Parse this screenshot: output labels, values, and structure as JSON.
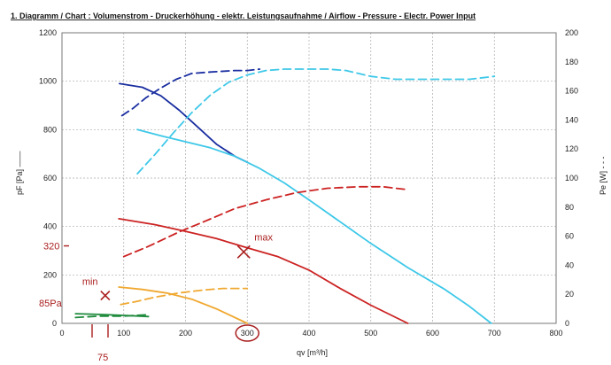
{
  "chart_data": {
    "type": "line",
    "title": "1. Diagramm / Chart :   Volumenstrom - Druckerhöhung - elektr. Leistungsaufnahme / Airflow - Pressure - Electr. Power Input",
    "xlabel": "qv [m³/h]",
    "ylabel": "pF [Pa] ——",
    "y2label": "Pe [W] - - -",
    "xlim": [
      0,
      800
    ],
    "ylim": [
      0,
      1200
    ],
    "y2lim": [
      0,
      200
    ],
    "xticks": [
      0,
      100,
      200,
      300,
      400,
      500,
      600,
      700,
      800
    ],
    "yticks": [
      0,
      200,
      400,
      600,
      800,
      1000,
      1200
    ],
    "y2ticks": [
      0,
      20,
      40,
      60,
      80,
      100,
      120,
      140,
      160,
      180,
      200
    ],
    "grid": true,
    "gridstyle": "dashed",
    "series": [
      {
        "axis": "left",
        "style": "solid",
        "color": "#1a2ea0",
        "x": [
          93,
          130,
          160,
          190,
          220,
          250,
          280,
          300
        ],
        "y": [
          990,
          975,
          940,
          880,
          810,
          740,
          690,
          665
        ]
      },
      {
        "axis": "left",
        "style": "solid",
        "color": "#3ec8e8",
        "x": [
          122,
          160,
          200,
          240,
          280,
          320,
          360,
          400,
          450,
          500,
          560,
          620,
          660,
          695
        ],
        "y": [
          800,
          775,
          750,
          725,
          690,
          640,
          580,
          510,
          420,
          330,
          230,
          140,
          70,
          0
        ]
      },
      {
        "axis": "left",
        "style": "solid",
        "color": "#cc2222",
        "x": [
          92,
          150,
          200,
          250,
          300,
          350,
          400,
          450,
          500,
          560
        ],
        "y": [
          432,
          408,
          380,
          350,
          312,
          275,
          220,
          145,
          75,
          0
        ]
      },
      {
        "axis": "left",
        "style": "solid",
        "color": "#f0a830",
        "x": [
          92,
          130,
          170,
          210,
          250,
          300
        ],
        "y": [
          150,
          140,
          125,
          100,
          60,
          0
        ]
      },
      {
        "axis": "left",
        "style": "solid",
        "color": "#1e8a3c",
        "x": [
          22,
          60,
          100,
          140
        ],
        "y": [
          40,
          37,
          33,
          28
        ]
      },
      {
        "axis": "right",
        "style": "dashed",
        "color": "#1a2ea0",
        "x": [
          97,
          115,
          135,
          160,
          185,
          210,
          240,
          280,
          300,
          320
        ],
        "y": [
          143,
          148,
          155,
          162,
          168,
          172,
          173,
          174,
          174,
          175
        ]
      },
      {
        "axis": "right",
        "style": "dashed",
        "color": "#3ec8e8",
        "x": [
          122,
          150,
          180,
          210,
          240,
          270,
          300,
          330,
          360,
          400,
          430,
          460,
          500,
          540,
          580,
          620,
          660,
          700
        ],
        "y": [
          103,
          116,
          131,
          145,
          157,
          166,
          171,
          174,
          175,
          175,
          175,
          174,
          170,
          168,
          168,
          168,
          168,
          170
        ]
      },
      {
        "axis": "right",
        "style": "dashed",
        "color": "#cc2222",
        "x": [
          100,
          140,
          190,
          230,
          280,
          330,
          380,
          430,
          480,
          520,
          560
        ],
        "y": [
          46,
          53,
          63,
          70,
          79,
          85,
          90,
          93,
          94,
          94,
          92
        ]
      },
      {
        "axis": "right",
        "style": "dashed",
        "color": "#f0a830",
        "x": [
          95,
          120,
          150,
          190,
          230,
          260,
          300
        ],
        "y": [
          13,
          15,
          18,
          21,
          23,
          24,
          24
        ]
      },
      {
        "axis": "right",
        "style": "dashed",
        "color": "#1e8a3c",
        "x": [
          22,
          60,
          100,
          140
        ],
        "y": [
          4,
          5,
          5,
          6
        ]
      }
    ],
    "annotations": {
      "max_label": "max",
      "max_point": [
        300,
        295
      ],
      "min_label": "min",
      "min_point": [
        70,
        115
      ],
      "pressure_320": "320",
      "pressure_85": "85Pa",
      "flow_75": "75",
      "circled_tick": "300",
      "color": "#aa1e1e"
    }
  }
}
